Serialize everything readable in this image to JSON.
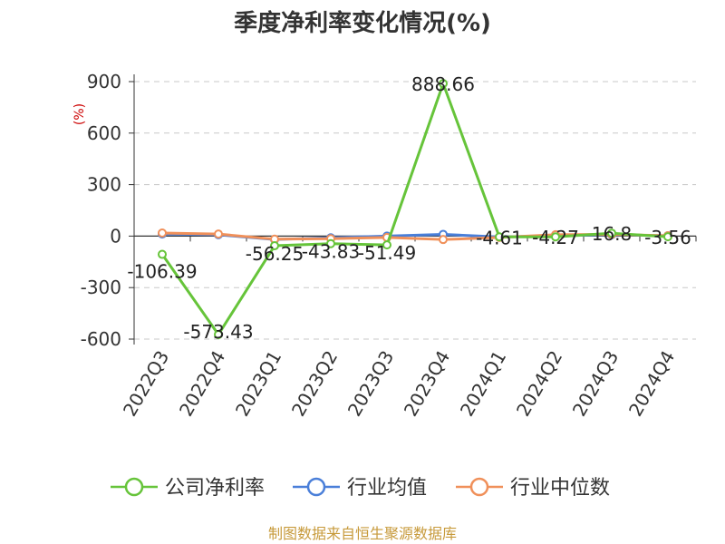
{
  "chart_data": {
    "type": "line",
    "title": "季度净利率变化情况(%)",
    "ylabel": "(%)",
    "xlabel": "",
    "categories": [
      "2022Q3",
      "2022Q4",
      "2023Q1",
      "2023Q2",
      "2023Q3",
      "2023Q4",
      "2024Q1",
      "2024Q2",
      "2024Q3",
      "2024Q4"
    ],
    "ylim": [
      -600,
      900
    ],
    "yticks": [
      900,
      600,
      300,
      0,
      -300,
      -600
    ],
    "yticks_labels": [
      "900",
      "600",
      "300",
      "0",
      "-300",
      "-600"
    ],
    "grid": true,
    "legend_position": "bottom",
    "series": [
      {
        "name": "公司净利率",
        "color": "#66c43a",
        "values": [
          -106.39,
          -573.43,
          -56.25,
          -43.83,
          -51.49,
          888.66,
          -4.61,
          -4.27,
          16.8,
          -3.56
        ],
        "labels": [
          "-106.39",
          "-573.43",
          "-56.25",
          "-43.83",
          "-51.49",
          "888.66",
          "-4.61",
          "-4.27",
          "16.8",
          "-3.56"
        ]
      },
      {
        "name": "行业均值",
        "color": "#4a7fd9",
        "values": [
          12,
          8,
          -20,
          -10,
          0,
          10,
          -5,
          2,
          8,
          2
        ]
      },
      {
        "name": "行业中位数",
        "color": "#f0905a",
        "values": [
          18,
          12,
          -18,
          -15,
          -8,
          -20,
          -8,
          8,
          10,
          2
        ]
      }
    ],
    "source": "制图数据来自恒生聚源数据库"
  }
}
